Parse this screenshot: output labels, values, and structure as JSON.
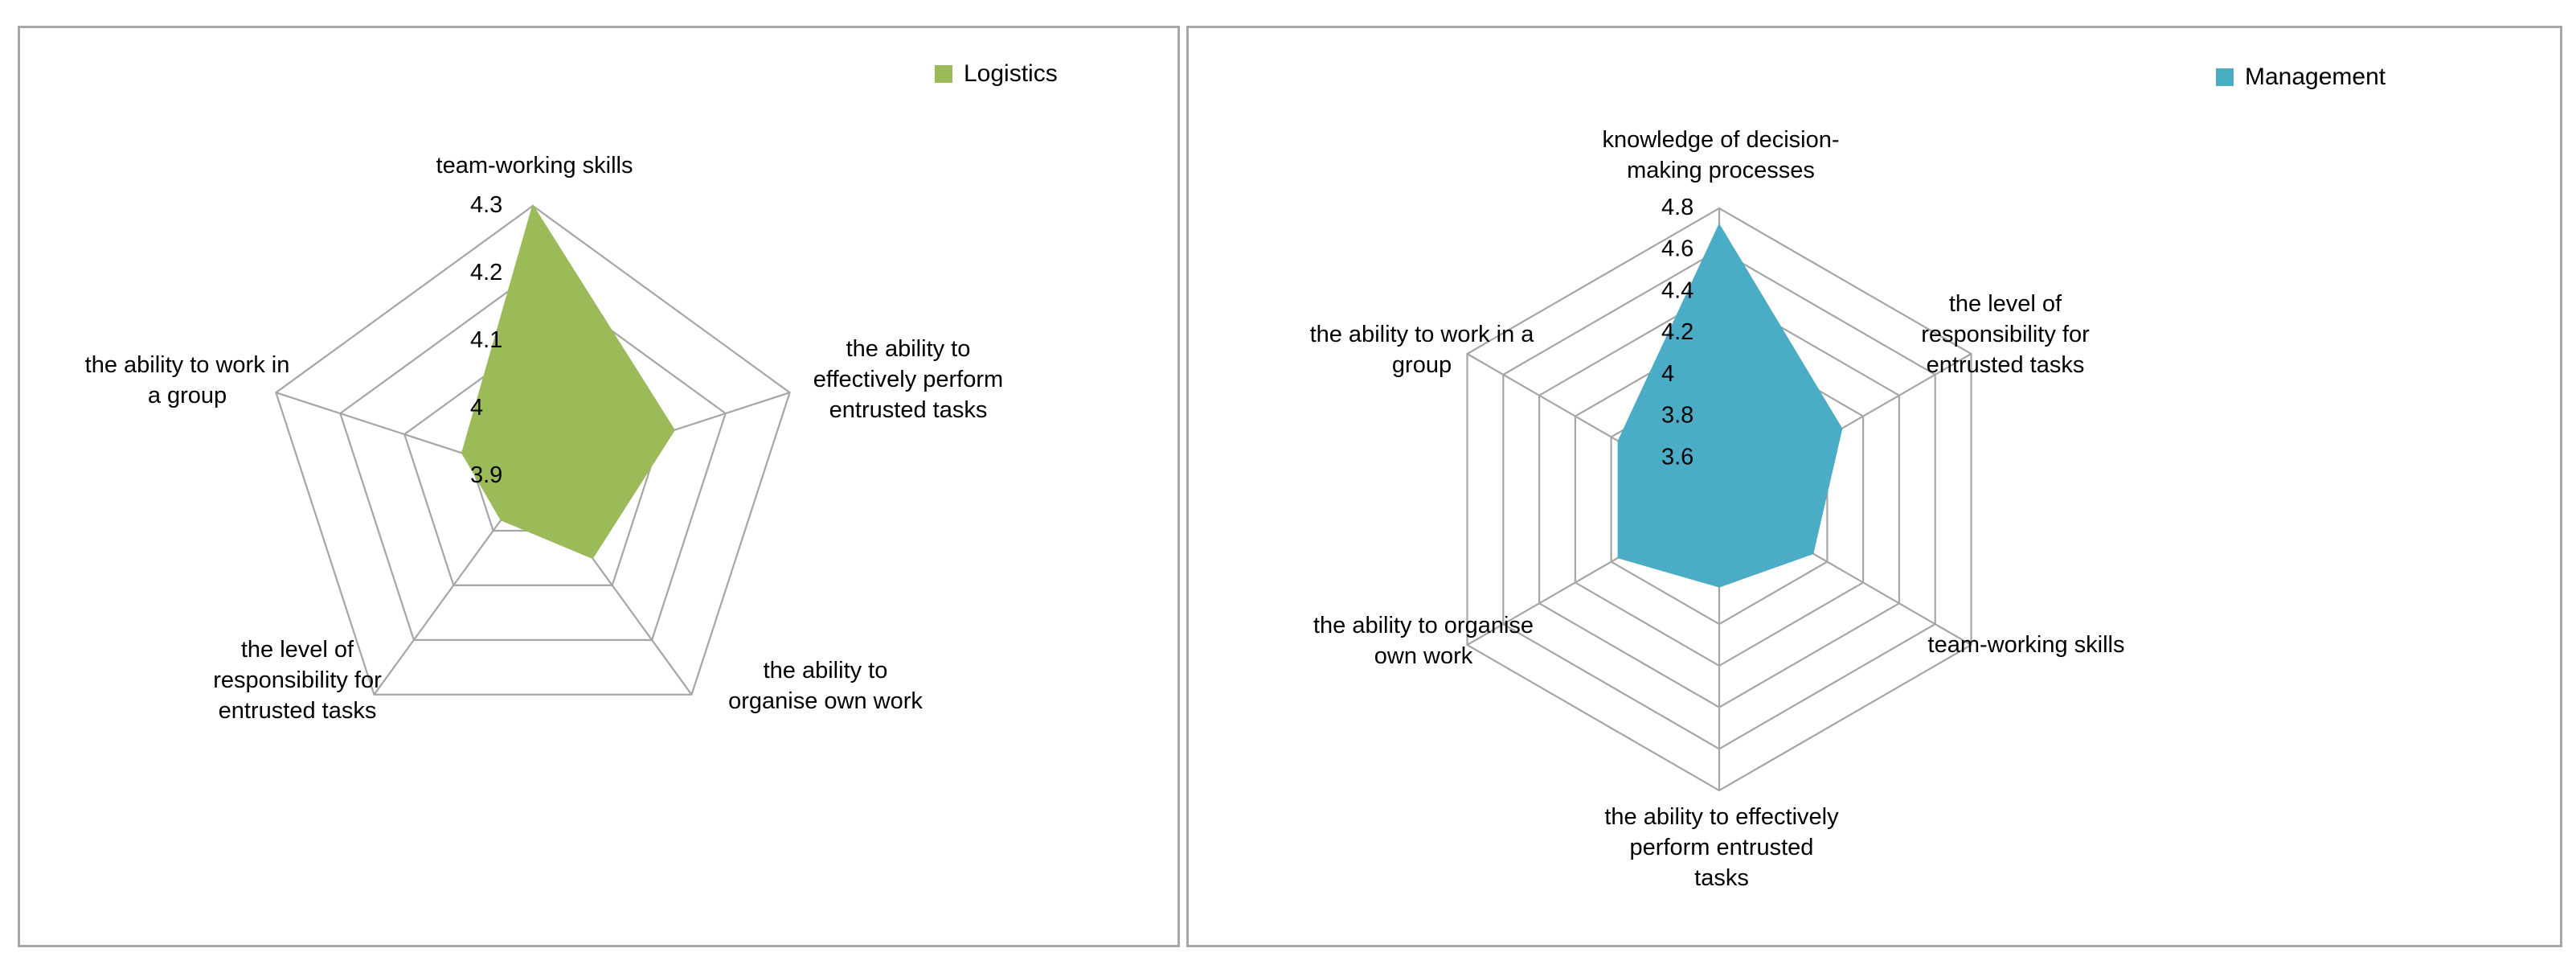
{
  "chart_data": [
    {
      "type": "radar",
      "categories": [
        "team-working skills",
        "the ability to effectively perform entrusted tasks",
        "the ability to organise own work",
        "the level of responsibility for entrusted tasks",
        "the ability to work in a group"
      ],
      "category_lines": [
        [
          "team-working skills"
        ],
        [
          "the ability to",
          "effectively perform",
          "entrusted tasks"
        ],
        [
          "the ability to",
          "organise own work"
        ],
        [
          "the level of",
          "responsibility for",
          "entrusted tasks"
        ],
        [
          "the ability to work in",
          "a group"
        ]
      ],
      "series": [
        {
          "name": "Logistics",
          "values": [
            4.3,
            4.12,
            4.05,
            3.98,
            4.01
          ],
          "color": "#9bbb59"
        }
      ],
      "ticks": [
        3.9,
        4,
        4.1,
        4.2,
        4.3
      ],
      "tick_labels": [
        "3.9",
        "4",
        "4.1",
        "4.2",
        "4.3"
      ],
      "rlim": [
        3.9,
        4.3
      ],
      "legend_position": "top-right",
      "grid": true
    },
    {
      "type": "radar",
      "categories": [
        "knowledge of decision-making processes",
        "the level of responsibility for entrusted tasks",
        "team-working skills",
        "the ability to effectively perform entrusted tasks",
        "the ability to organise own work",
        "the ability to work in a group"
      ],
      "category_lines": [
        [
          "knowledge of decision-",
          "making processes"
        ],
        [
          "the level of",
          "responsibility for",
          "entrusted tasks"
        ],
        [
          "team-working skills"
        ],
        [
          "the ability to effectively",
          "perform entrusted",
          "tasks"
        ],
        [
          "the ability to organise",
          "own work"
        ],
        [
          "the ability to work in a",
          "group"
        ]
      ],
      "series": [
        {
          "name": "Management",
          "values": [
            4.72,
            4.08,
            3.92,
            3.82,
            3.96,
            3.96
          ],
          "color": "#4bacc6"
        }
      ],
      "ticks": [
        3.4,
        3.6,
        3.8,
        4,
        4.2,
        4.4,
        4.6,
        4.8
      ],
      "tick_labels": [
        "3.6",
        "3.8",
        "4",
        "4.2",
        "4.4",
        "4.6",
        "4.8"
      ],
      "rlim": [
        3.4,
        4.8
      ],
      "legend_position": "top-right",
      "grid": true
    }
  ]
}
